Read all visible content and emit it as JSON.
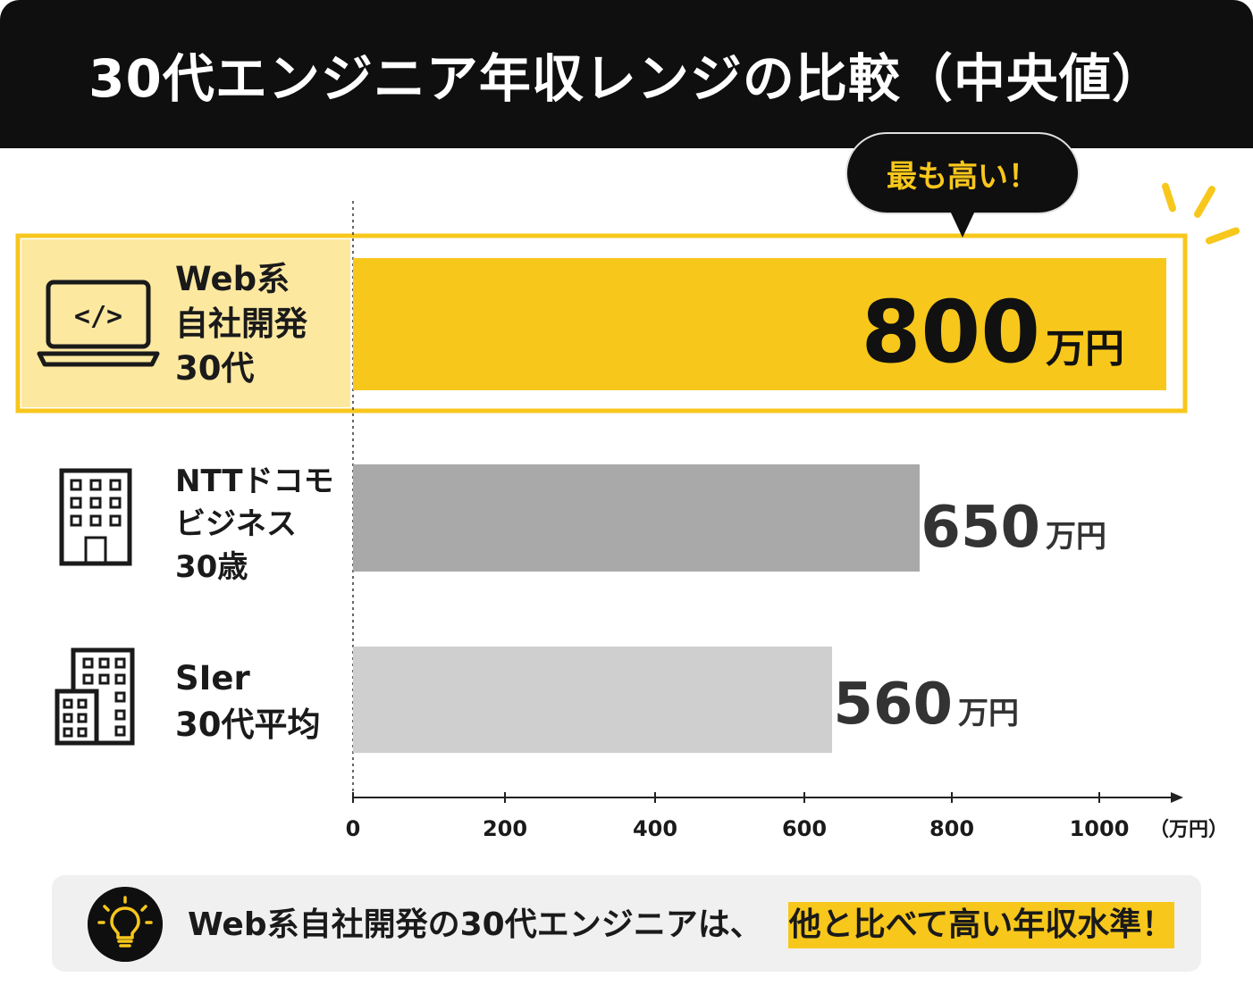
{
  "header": {
    "title": "30代エンジニア年収レンジの比較（中央値）"
  },
  "callout": {
    "text": "最も高い！"
  },
  "rows": [
    {
      "lines": [
        "Web系",
        "自社開発",
        "30代"
      ],
      "icon": "laptop-code-icon"
    },
    {
      "lines": [
        "NTTドコモ",
        "ビジネス",
        "30歳"
      ],
      "icon": "office-building-icon"
    },
    {
      "lines": [
        "SIer",
        "30代平均"
      ],
      "icon": "buildings-icon"
    }
  ],
  "chart_data": {
    "type": "bar",
    "orientation": "horizontal",
    "categories": [
      "Web系 自社開発 30代",
      "NTTドコモ ビジネス 30歳",
      "SIer 30代平均"
    ],
    "values": [
      800,
      650,
      560
    ],
    "value_labels": [
      "800",
      "650",
      "560"
    ],
    "value_unit": "万円",
    "xlim": [
      0,
      1000
    ],
    "xticks": [
      "0",
      "200",
      "400",
      "600",
      "800",
      "1000"
    ],
    "x_unit_label": "（万円）",
    "grid": false,
    "colors": [
      "#f7c71c",
      "#a9a9a9",
      "#cfcfcf"
    ],
    "highlight_index": 0,
    "highlight_fill": "#fde8a0",
    "highlight_border": "#f7c71c"
  },
  "footer": {
    "text": "Web系自社開発の30代エンジニアは、",
    "highlight": "他と比べて高い年収水準！",
    "icon": "lightbulb-icon"
  }
}
